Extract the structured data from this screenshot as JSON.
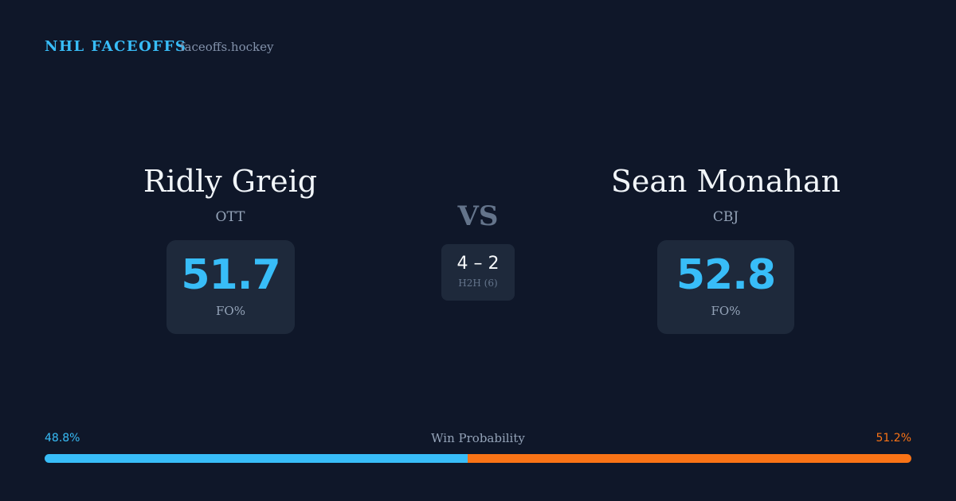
{
  "header": {
    "brand": "NHL FACEOFFS",
    "site": "faceoffs.hockey"
  },
  "players": [
    {
      "name": "Ridly Greig",
      "team": "OTT",
      "fo_pct": "51.7",
      "fo_label": "FO%"
    },
    {
      "name": "Sean Monahan",
      "team": "CBJ",
      "fo_pct": "52.8",
      "fo_label": "FO%"
    }
  ],
  "versus": "VS",
  "h2h": {
    "score": "4 – 2",
    "label": "H2H (6)"
  },
  "win_probability": {
    "label": "Win Probability",
    "values": [
      48.8,
      51.2
    ],
    "value_labels": [
      "48.8%",
      "51.2%"
    ],
    "colors": [
      "#38bdf8",
      "#f97316"
    ]
  }
}
